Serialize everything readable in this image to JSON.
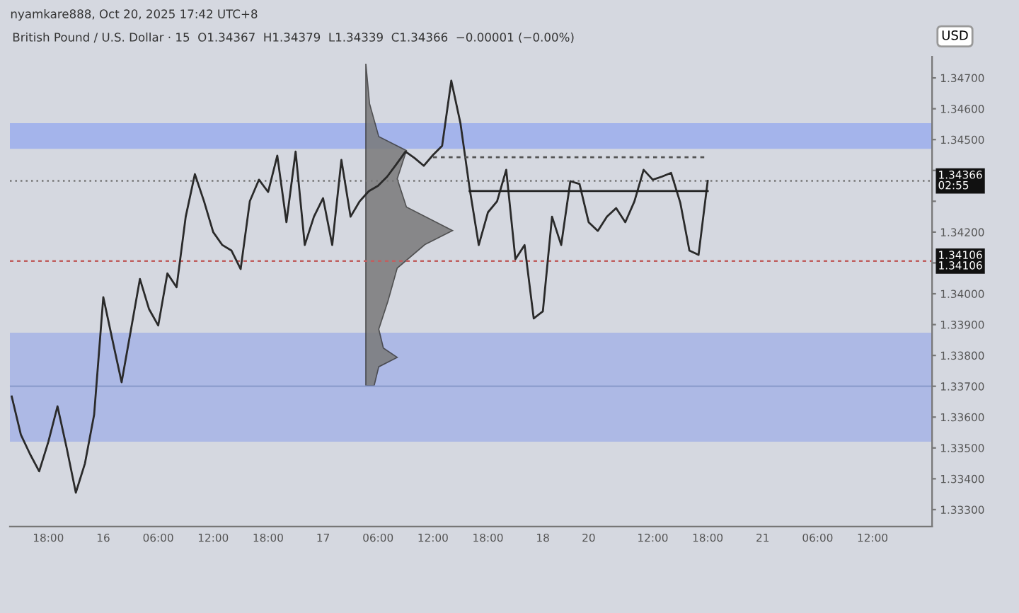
{
  "chart_data": {
    "type": "line",
    "title": "British Pound / U.S. Dollar · 15  O1.34367  H1.34379  L1.34339  C1.34366  −0.00001 (−0.00%)",
    "subtitle": "nyamkare888, Oct 20, 2025 17:42 UTC+8",
    "ylabel": "USD",
    "categories": [
      null,
      null,
      null,
      null,
      "18:00",
      null,
      null,
      null,
      null,
      null,
      "16",
      null,
      null,
      null,
      null,
      null,
      "06:00",
      null,
      null,
      null,
      null,
      null,
      "12:00",
      null,
      null,
      null,
      null,
      null,
      "18:00",
      null,
      null,
      null,
      null,
      null,
      "17",
      null,
      null,
      null,
      null,
      null,
      "06:00",
      null,
      null,
      null,
      null,
      null,
      "12:00",
      null,
      null,
      null,
      null,
      null,
      "18:00",
      null,
      null,
      null,
      null,
      null,
      "18",
      null,
      null,
      null,
      null,
      "20",
      null,
      null,
      null,
      null,
      null,
      null,
      "12:00",
      null,
      null,
      null,
      null,
      null,
      "18:00",
      null,
      null,
      null,
      null,
      null,
      "21",
      null,
      null,
      null,
      null,
      null,
      "06:00",
      null,
      null,
      null,
      null,
      null,
      "12:00",
      null,
      null,
      null,
      null,
      null,
      null
    ],
    "series": [
      {
        "color": "#2a2a2a",
        "values": [
          1.33667,
          1.33543,
          1.3348,
          1.33424,
          1.3352,
          1.33635,
          1.335,
          1.33355,
          1.3345,
          1.33608,
          1.33989,
          1.3385,
          1.33713,
          1.3388,
          1.34048,
          1.3395,
          1.33897,
          1.34066,
          1.34021,
          1.3425,
          1.34388,
          1.343,
          1.342,
          1.34158,
          1.3414,
          1.3408,
          1.343,
          1.3437,
          1.3433,
          1.34448,
          1.34232,
          1.34461,
          1.34158,
          1.3425,
          1.3431,
          1.34158,
          1.34434,
          1.3425,
          1.343,
          1.34333,
          1.3435,
          1.3438,
          1.3442,
          1.34461,
          1.3444,
          1.34415,
          1.3445,
          1.3448,
          1.34691,
          1.34553,
          1.34342,
          1.34158,
          1.34264,
          1.343,
          1.34402,
          1.34112,
          1.34158,
          1.3392,
          1.33943,
          1.3425,
          1.34158,
          1.34365,
          1.34356,
          1.34232,
          1.34204,
          1.3425,
          1.34278,
          1.34232,
          1.343,
          1.34402,
          1.3437,
          1.3438,
          1.34392,
          1.34296,
          1.3414,
          1.34126,
          1.34366,
          null,
          null,
          null,
          null,
          null,
          null,
          null,
          null,
          null,
          null,
          null,
          null,
          null,
          null,
          null,
          null,
          null,
          null,
          null,
          null,
          null,
          null,
          null,
          null
        ]
      },
      {
        "color": "#202020",
        "line_style": "solid",
        "values": [
          null,
          null,
          null,
          null,
          null,
          null,
          null,
          null,
          null,
          null,
          null,
          null,
          null,
          null,
          null,
          null,
          null,
          null,
          null,
          null,
          null,
          null,
          null,
          null,
          null,
          null,
          null,
          null,
          null,
          null,
          null,
          null,
          null,
          null,
          null,
          null,
          null,
          null,
          null,
          null,
          null,
          null,
          null,
          null,
          null,
          null,
          null,
          null,
          null,
          null,
          1.34333,
          1.34333,
          1.34333,
          1.34333,
          1.34333,
          1.34333,
          1.34333,
          1.34333,
          1.34333,
          1.34333,
          1.34333,
          1.34333,
          1.34333,
          1.34333,
          1.34333,
          1.34333,
          1.34333,
          1.34333,
          1.34333,
          1.34333,
          1.34333,
          1.34333,
          1.34333,
          1.34333,
          1.34333,
          1.34333,
          1.34333,
          null,
          null,
          null,
          null,
          null,
          null,
          null,
          null,
          null,
          null,
          null,
          null,
          null,
          null,
          null,
          null,
          null,
          null,
          null,
          null,
          null,
          null,
          null,
          null
        ]
      },
      {
        "color": "#555555",
        "line_style": "dashed",
        "values": [
          null,
          null,
          null,
          null,
          null,
          null,
          null,
          null,
          null,
          null,
          null,
          null,
          null,
          null,
          null,
          null,
          null,
          null,
          null,
          null,
          null,
          null,
          null,
          null,
          null,
          null,
          null,
          null,
          null,
          null,
          null,
          null,
          null,
          null,
          null,
          null,
          null,
          null,
          null,
          null,
          null,
          null,
          null,
          null,
          null,
          null,
          1.34443,
          1.34443,
          1.34443,
          1.34443,
          1.34443,
          1.34443,
          1.34443,
          1.34443,
          1.34443,
          1.34443,
          1.34443,
          1.34443,
          1.34443,
          1.34443,
          1.34443,
          1.34443,
          1.34443,
          1.34443,
          1.34443,
          1.34443,
          1.34443,
          1.34443,
          1.34443,
          1.34443,
          1.34443,
          1.34443,
          1.34443,
          1.34443,
          1.34443,
          1.34443,
          1.34443,
          null,
          null,
          null,
          null,
          null,
          null,
          null,
          null,
          null,
          null,
          null,
          null,
          null,
          null,
          null,
          null,
          null,
          null,
          null,
          null,
          null,
          null,
          null,
          null
        ]
      }
    ],
    "ylim": [
      1.33245,
      1.34769
    ],
    "yticks": [
      {
        "value": 1.333,
        "label": "1.33300"
      },
      {
        "value": 1.334,
        "label": "1.33400"
      },
      {
        "value": 1.335,
        "label": "1.33500"
      },
      {
        "value": 1.336,
        "label": "1.33600"
      },
      {
        "value": 1.337,
        "label": "1.33700"
      },
      {
        "value": 1.338,
        "label": "1.33800"
      },
      {
        "value": 1.339,
        "label": "1.33900"
      },
      {
        "value": 1.34,
        "label": "1.34000"
      },
      {
        "value": 1.341,
        "label": null
      },
      {
        "value": 1.342,
        "label": "1.34200"
      },
      {
        "value": 1.343,
        "label": null
      },
      {
        "value": 1.344,
        "label": null
      },
      {
        "value": 1.345,
        "label": "1.34500"
      },
      {
        "value": 1.346,
        "label": "1.34600"
      },
      {
        "value": 1.347,
        "label": "1.34700"
      }
    ],
    "bands": [
      {
        "axis": "y",
        "from": 1.3352,
        "to": 1.33874,
        "color": "#a8b6e6"
      },
      {
        "axis": "y",
        "from": 1.3447,
        "to": 1.34553,
        "color": "#9fb0ec"
      }
    ],
    "ref_lines": [
      {
        "axis": "y",
        "value": 1.34366,
        "label": "1.34366\n02:55",
        "color": "#777777",
        "line_style": "dotted"
      },
      {
        "axis": "y",
        "value": 1.34106,
        "label": "1.34106\n1.34106",
        "color": "#c06060",
        "line_style": "dashed"
      },
      {
        "axis": "y",
        "value": 1.337,
        "label": null,
        "color": "#8f9fcf",
        "line_style": "solid"
      }
    ],
    "grid": false,
    "legend": false,
    "marker": "none",
    "line_style": "solid"
  }
}
